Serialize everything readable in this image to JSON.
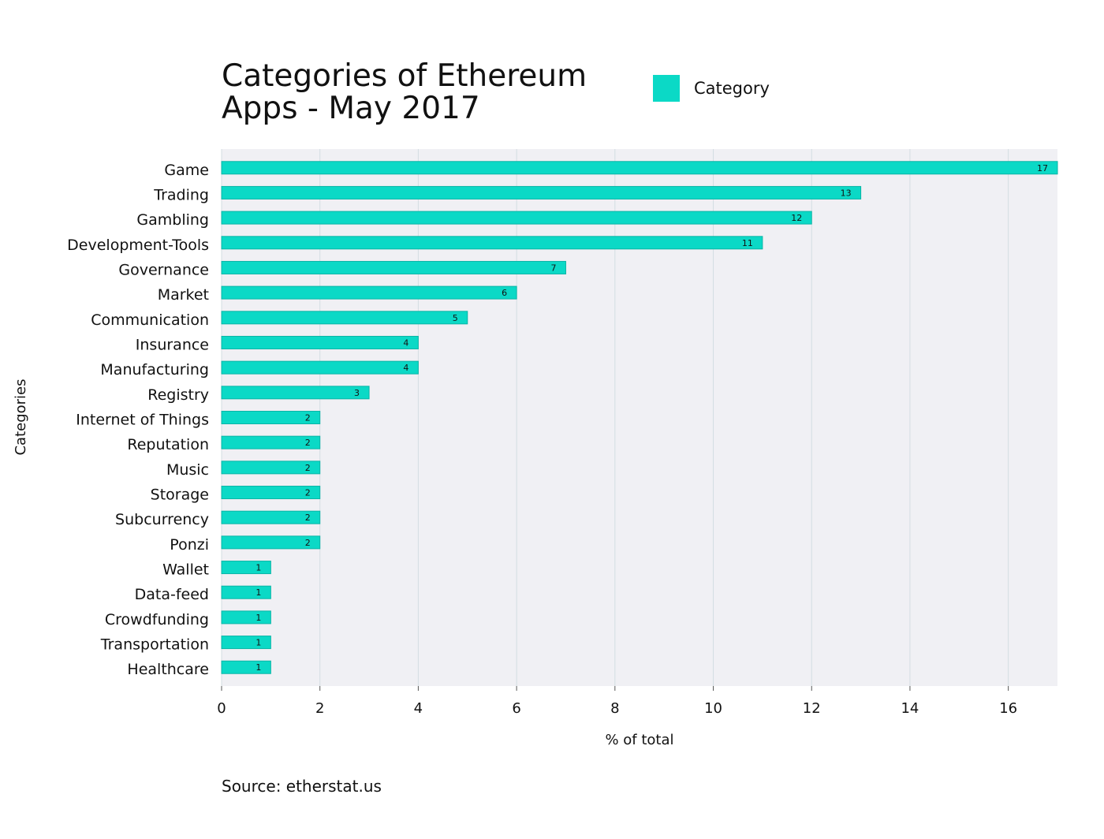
{
  "chart_data": {
    "type": "bar",
    "orientation": "horizontal",
    "title": "Categories of Ethereum Apps - May 2017",
    "xlabel": "% of total",
    "ylabel": "Categories",
    "xlim": [
      0,
      17
    ],
    "xticks": [
      0,
      2,
      4,
      6,
      8,
      10,
      12,
      14,
      16
    ],
    "grid": true,
    "legend": {
      "position": "top-right",
      "entries": [
        "Category"
      ]
    },
    "series": [
      {
        "name": "Category",
        "color": "#0bd9c6",
        "categories": [
          "Game",
          "Trading",
          "Gambling",
          "Development-Tools",
          "Governance",
          "Market",
          "Communication",
          "Insurance",
          "Manufacturing",
          "Registry",
          "Internet of Things",
          "Reputation",
          "Music",
          "Storage",
          "Subcurrency",
          "Ponzi",
          "Wallet",
          "Data-feed",
          "Crowdfunding",
          "Transportation",
          "Healthcare"
        ],
        "values": [
          17,
          13,
          12,
          11,
          7,
          6,
          5,
          4,
          4,
          3,
          2,
          2,
          2,
          2,
          2,
          2,
          1,
          1,
          1,
          1,
          1
        ]
      }
    ]
  },
  "header": {
    "title": "Categories of Ethereum Apps - May 2017",
    "legend_label": "Category"
  },
  "colors": {
    "bar": "#0bd9c6",
    "plot_background": "#f0f0f4",
    "grid": "#d3dde2"
  },
  "footer": {
    "source": "Source: etherstat.us"
  }
}
